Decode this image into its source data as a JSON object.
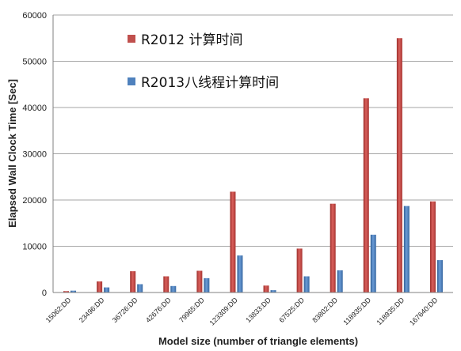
{
  "chart_data": {
    "type": "bar",
    "title": "",
    "xlabel": "Model size (number of triangle elements)",
    "ylabel": "Elapsed Wall Clock Time [Sec]",
    "ylim": [
      0,
      60000
    ],
    "yticks": [
      0,
      10000,
      20000,
      30000,
      40000,
      50000,
      60000
    ],
    "grid": true,
    "legend_position": "top-center",
    "categories": [
      "15062:DD",
      "23496:DD",
      "36726:DD",
      "42676:DD",
      "79965:DD",
      "123309:DD",
      "13833:DD",
      "67525:DD",
      "83802:DD",
      "118935:DD",
      "118935:DD",
      "167640:DD"
    ],
    "series": [
      {
        "name": "R2012 计算时间",
        "color": "#c0504d",
        "values": [
          300,
          2400,
          4600,
          3500,
          4700,
          21800,
          1500,
          9500,
          19200,
          42000,
          55000,
          19700
        ]
      },
      {
        "name": "R2013八线程计算时间",
        "color": "#4f81bd",
        "values": [
          400,
          1100,
          1800,
          1400,
          3100,
          8000,
          500,
          3500,
          4800,
          12500,
          18700,
          7000
        ]
      }
    ]
  }
}
